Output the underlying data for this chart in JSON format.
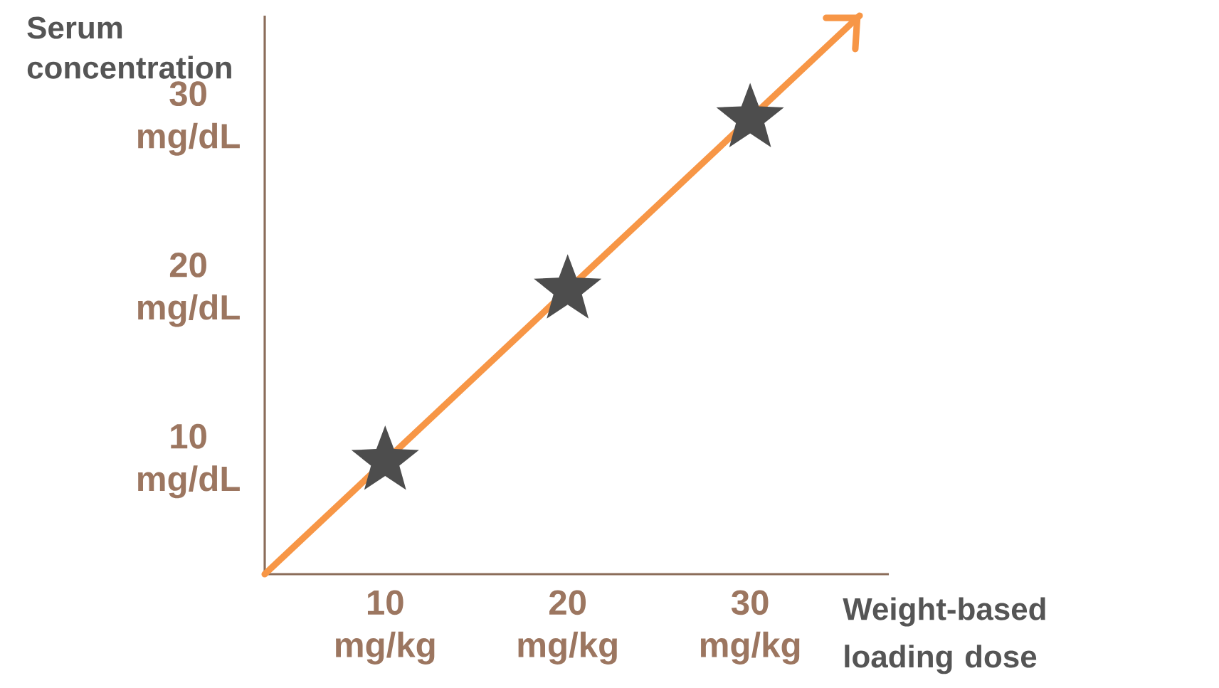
{
  "chart_data": {
    "type": "scatter",
    "xlabel": "Weight-based loading dose",
    "ylabel": "Serum concentration",
    "xlim": [
      3.4,
      37.6
    ],
    "ylim": [
      3.4,
      36
    ],
    "xticks": [
      {
        "value": 10,
        "label": "10 mg/kg"
      },
      {
        "value": 20,
        "label": "20 mg/kg"
      },
      {
        "value": 30,
        "label": "30 mg/kg"
      }
    ],
    "yticks": [
      {
        "value": 10,
        "label": "10 mg/dL"
      },
      {
        "value": 20,
        "label": "20 mg/dL"
      },
      {
        "value": 30,
        "label": "30 mg/dL"
      }
    ],
    "marker": "star",
    "series": [
      {
        "type": "line",
        "color": "#f79646",
        "marker": "none",
        "x": [
          3.4,
          36
        ],
        "values": [
          3.4,
          36
        ]
      },
      {
        "color": "#4d4d4d",
        "x": [
          10,
          20,
          30
        ],
        "values": [
          10,
          20,
          30
        ]
      }
    ]
  }
}
